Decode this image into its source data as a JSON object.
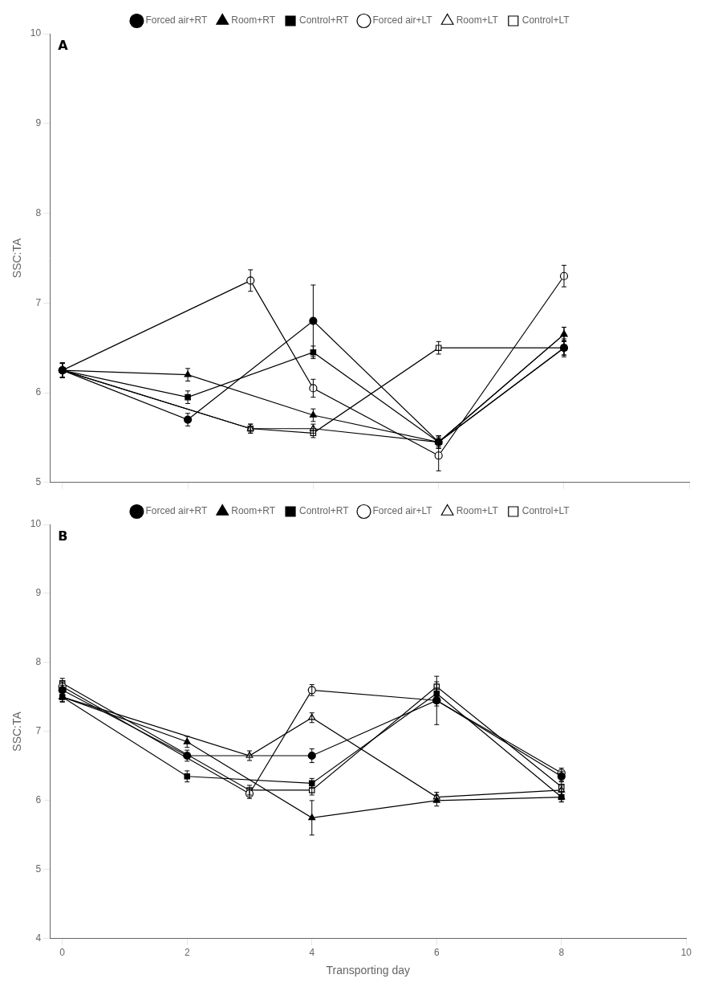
{
  "chart_data": [
    {
      "type": "line",
      "annotations": [
        "A"
      ],
      "ylabel": "SSC:TA",
      "xlim": [
        -0.2,
        10
      ],
      "xticks": [
        0,
        2,
        4,
        6,
        8,
        10
      ],
      "ylim": [
        5.0,
        10.0
      ],
      "yticks": [
        5,
        6,
        7,
        8,
        9,
        10
      ],
      "grid": false,
      "legend": "top",
      "tick_labels": "y",
      "color": "black",
      "series": [
        {
          "name": "Forced air+RT",
          "marker": "circle",
          "x": [
            0,
            2,
            4,
            6,
            8
          ],
          "values": [
            6.25,
            5.7,
            6.8,
            5.45,
            6.5
          ],
          "yerr": [
            0.08,
            0.07,
            0.4,
            0.07,
            0.1
          ]
        },
        {
          "name": "Room+RT",
          "marker": "triangle",
          "x": [
            0,
            2,
            4,
            6,
            8
          ],
          "values": [
            6.25,
            6.2,
            5.75,
            5.45,
            6.65
          ],
          "yerr": [
            0.08,
            0.07,
            0.07,
            0.07,
            0.08
          ]
        },
        {
          "name": "Control+RT",
          "marker": "square",
          "x": [
            0,
            2,
            4,
            6,
            8
          ],
          "values": [
            6.25,
            5.95,
            6.45,
            5.45,
            6.5
          ],
          "yerr": [
            0.08,
            0.07,
            0.07,
            0.07,
            0.08
          ]
        },
        {
          "name": "Forced air+LT",
          "marker": "circle_open",
          "x": [
            0,
            3,
            4,
            6,
            8
          ],
          "values": [
            6.25,
            7.25,
            6.05,
            5.3,
            7.3
          ],
          "yerr": [
            0.08,
            0.12,
            0.1,
            0.17,
            0.12
          ]
        },
        {
          "name": "Room+LT",
          "marker": "triangle_open",
          "x": [
            0,
            3,
            4,
            6,
            8
          ],
          "values": [
            6.25,
            5.6,
            5.6,
            5.45,
            6.65
          ],
          "yerr": [
            0.08,
            0.05,
            0.05,
            0.05,
            0.08
          ]
        },
        {
          "name": "Control+LT",
          "marker": "square_open",
          "x": [
            0,
            3,
            4,
            6,
            8
          ],
          "values": [
            6.25,
            5.6,
            5.55,
            6.5,
            6.5
          ],
          "yerr": [
            0.08,
            0.05,
            0.05,
            0.07,
            0.08
          ]
        }
      ]
    },
    {
      "type": "line",
      "annotations": [
        "B"
      ],
      "ylabel": "SSC:TA",
      "xlabel": "Transporting day",
      "xlim": [
        -0.2,
        10
      ],
      "xticks": [
        0,
        2,
        4,
        6,
        8,
        10
      ],
      "ylim": [
        4.0,
        10.0
      ],
      "yticks": [
        4,
        5,
        6,
        7,
        8,
        9,
        10
      ],
      "grid": false,
      "legend": "top",
      "color": "black",
      "series": [
        {
          "name": "Forced air+RT",
          "marker": "circle",
          "x": [
            0,
            2,
            4,
            6,
            8
          ],
          "values": [
            7.6,
            6.65,
            6.65,
            7.45,
            6.35
          ],
          "yerr": [
            0.07,
            0.08,
            0.1,
            0.08,
            0.07
          ]
        },
        {
          "name": "Room+RT",
          "marker": "triangle",
          "x": [
            0,
            2,
            4,
            6,
            8
          ],
          "values": [
            7.5,
            6.85,
            5.75,
            6.0,
            6.05
          ],
          "yerr": [
            0.07,
            0.08,
            0.25,
            0.08,
            0.07
          ]
        },
        {
          "name": "Control+RT",
          "marker": "square",
          "x": [
            0,
            2,
            4,
            6,
            8
          ],
          "values": [
            7.5,
            6.35,
            6.25,
            7.55,
            6.05
          ],
          "yerr": [
            0.07,
            0.08,
            0.07,
            0.08,
            0.07
          ]
        },
        {
          "name": "Forced air+LT",
          "marker": "circle_open",
          "x": [
            0,
            3,
            4,
            6,
            8
          ],
          "values": [
            7.65,
            6.1,
            7.6,
            7.45,
            6.4
          ],
          "yerr": [
            0.07,
            0.07,
            0.08,
            0.35,
            0.07
          ]
        },
        {
          "name": "Room+LT",
          "marker": "triangle_open",
          "x": [
            0,
            3,
            4,
            6,
            8
          ],
          "values": [
            7.5,
            6.65,
            7.2,
            6.05,
            6.15
          ],
          "yerr": [
            0.07,
            0.07,
            0.07,
            0.07,
            0.07
          ]
        },
        {
          "name": "Control+LT",
          "marker": "square_open",
          "x": [
            0,
            3,
            4,
            6,
            8
          ],
          "values": [
            7.7,
            6.15,
            6.15,
            7.65,
            6.2
          ],
          "yerr": [
            0.07,
            0.07,
            0.07,
            0.07,
            0.07
          ]
        }
      ]
    }
  ]
}
